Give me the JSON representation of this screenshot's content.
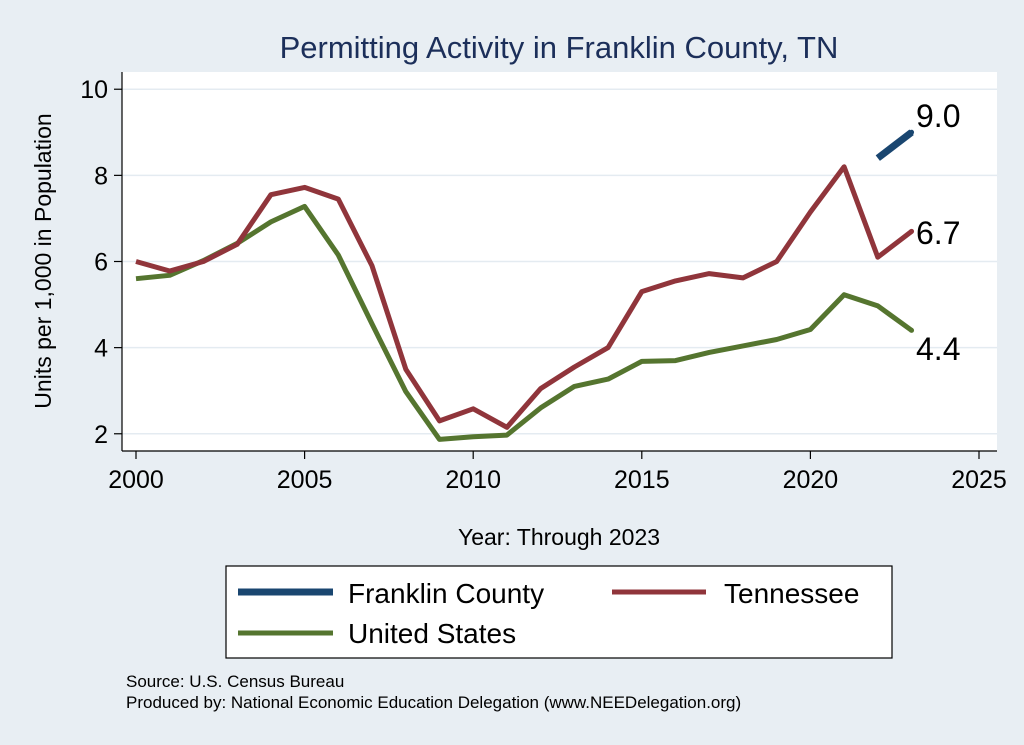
{
  "chart_data": {
    "type": "line",
    "title": "Permitting Activity in Franklin County, TN",
    "xlabel": "Year: Through 2023",
    "ylabel": "Units per 1,000 in Population",
    "xlim": [
      2000,
      2025
    ],
    "ylim": [
      1.6,
      10.4
    ],
    "xticks": [
      2000,
      2005,
      2010,
      2015,
      2020,
      2025
    ],
    "yticks": [
      2,
      4,
      6,
      8,
      10
    ],
    "series": [
      {
        "name": "Franklin County",
        "color": "#1a4670",
        "x": [
          2022,
          2023
        ],
        "values": [
          8.4,
          9.0
        ],
        "end_label": "9.0"
      },
      {
        "name": "Tennessee",
        "color": "#90353b",
        "x": [
          2000,
          2001,
          2002,
          2003,
          2004,
          2005,
          2006,
          2007,
          2008,
          2009,
          2010,
          2011,
          2012,
          2013,
          2014,
          2015,
          2016,
          2017,
          2018,
          2019,
          2020,
          2021,
          2022,
          2023
        ],
        "values": [
          6.0,
          5.78,
          6.0,
          6.4,
          7.55,
          7.72,
          7.45,
          5.9,
          3.5,
          2.3,
          2.58,
          2.15,
          3.05,
          3.55,
          4.0,
          5.3,
          5.55,
          5.72,
          5.62,
          6.0,
          7.15,
          8.2,
          6.1,
          6.7
        ],
        "end_label": "6.7"
      },
      {
        "name": "United States",
        "color": "#55752f",
        "x": [
          2000,
          2001,
          2002,
          2003,
          2004,
          2005,
          2006,
          2007,
          2008,
          2009,
          2010,
          2011,
          2012,
          2013,
          2014,
          2015,
          2016,
          2017,
          2018,
          2019,
          2020,
          2021,
          2022,
          2023
        ],
        "values": [
          5.6,
          5.68,
          6.02,
          6.42,
          6.92,
          7.28,
          6.15,
          4.55,
          2.98,
          1.87,
          1.93,
          1.97,
          2.6,
          3.1,
          3.27,
          3.68,
          3.7,
          3.89,
          4.04,
          4.19,
          4.42,
          5.23,
          4.97,
          4.4
        ],
        "end_label": "4.4"
      }
    ],
    "legend": {
      "placement": "bottom",
      "entries": [
        "Franklin County",
        "Tennessee",
        "United States"
      ]
    },
    "notes": [
      "Source: U.S. Census Bureau",
      "Produced by: National Economic Education Delegation (www.NEEDelegation.org)"
    ]
  }
}
